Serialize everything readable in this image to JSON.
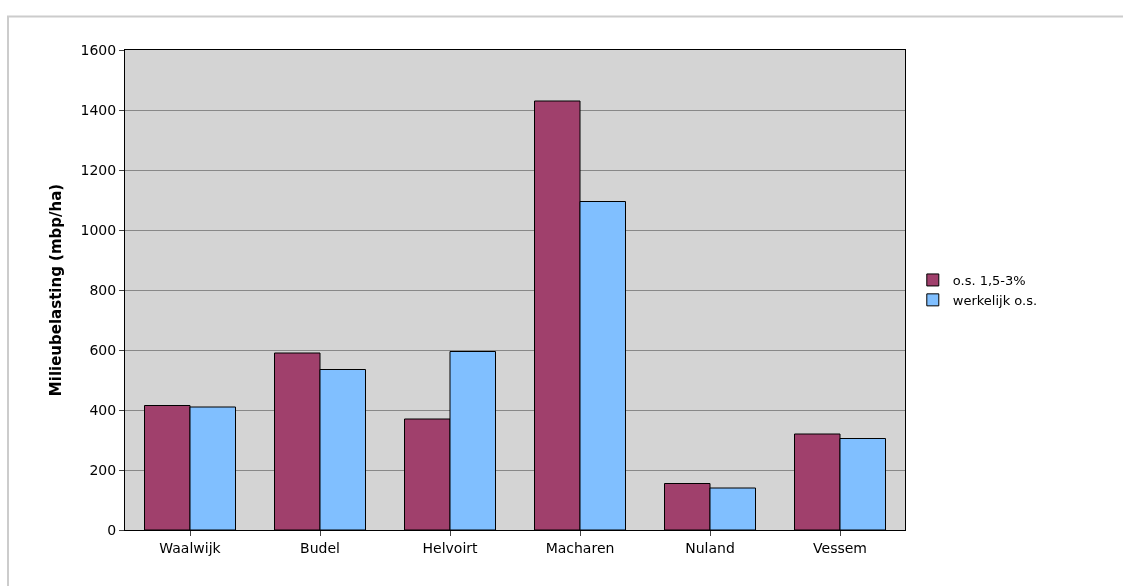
{
  "chart_data": {
    "type": "bar",
    "ylabel": "Milieubelasting (mbp/ha)",
    "categories": [
      "Waalwijk",
      "Budel",
      "Helvoirt",
      "Macharen",
      "Nuland",
      "Vessem"
    ],
    "series": [
      {
        "name": "o.s. 1,5-3%",
        "color": "#a0406c",
        "values": [
          415,
          590,
          370,
          1430,
          155,
          320
        ]
      },
      {
        "name": "werkelijk o.s.",
        "color": "#80bfff",
        "values": [
          410,
          535,
          595,
          1095,
          140,
          305
        ]
      }
    ],
    "ylim": [
      0,
      1600
    ],
    "yticks": [
      0,
      200,
      400,
      600,
      800,
      1000,
      1200,
      1400,
      1600
    ],
    "grid": "y",
    "legend": "right"
  }
}
